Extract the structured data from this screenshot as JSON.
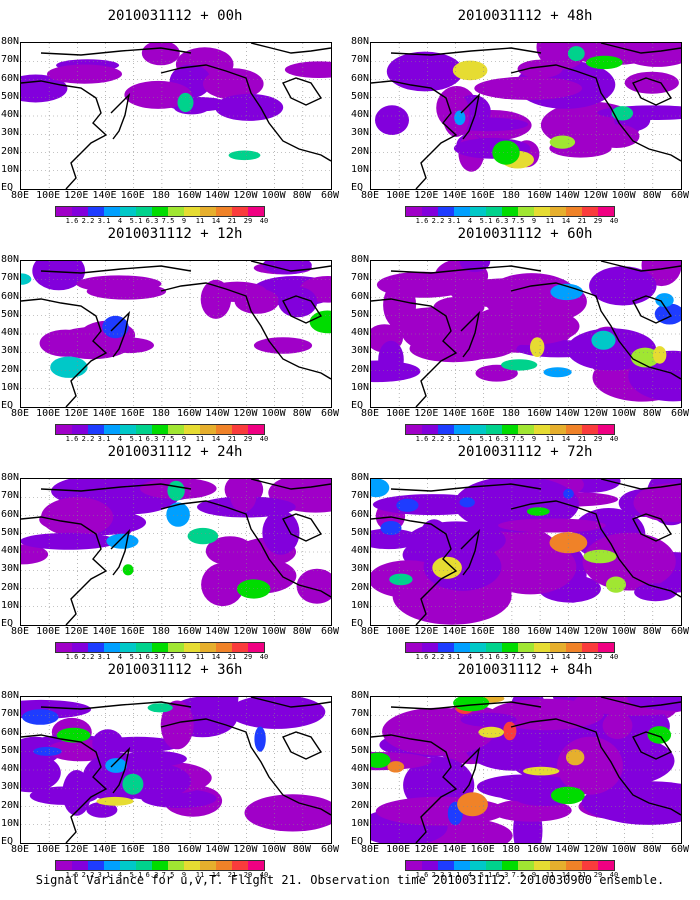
{
  "panels": [
    {
      "title": "2010031112 + 00h",
      "intensity": 0.15
    },
    {
      "title": "2010031112 + 12h",
      "intensity": 0.3
    },
    {
      "title": "2010031112 + 24h",
      "intensity": 0.45
    },
    {
      "title": "2010031112 + 36h",
      "intensity": 0.55
    },
    {
      "title": "2010031112 + 48h",
      "intensity": 0.6
    },
    {
      "title": "2010031112 + 60h",
      "intensity": 0.7
    },
    {
      "title": "2010031112 + 72h",
      "intensity": 0.82
    },
    {
      "title": "2010031112 + 84h",
      "intensity": 0.95
    }
  ],
  "lat_labels": [
    "80N",
    "70N",
    "60N",
    "50N",
    "40N",
    "30N",
    "20N",
    "10N",
    "EQ"
  ],
  "lon_labels": [
    "80E",
    "100E",
    "120E",
    "140E",
    "160E",
    "180",
    "160W",
    "140W",
    "120W",
    "100W",
    "80W",
    "60W"
  ],
  "colorbar": {
    "values": [
      "1.6",
      "2.2",
      "3.1",
      "4",
      "5.1",
      "6.3",
      "7.5",
      "9",
      "11",
      "14",
      "21",
      "29",
      "40"
    ],
    "colors": [
      "#a000c8",
      "#8200dc",
      "#1e3cff",
      "#00a0ff",
      "#00c8c8",
      "#00d28c",
      "#00dc00",
      "#a0e632",
      "#e6dc32",
      "#e6af2d",
      "#f08228",
      "#fa3c3c",
      "#f00082"
    ]
  },
  "caption": "Signal Variance for u,v,T. Flight 21. Observation time 2010031112. 2010030900 ensemble."
}
